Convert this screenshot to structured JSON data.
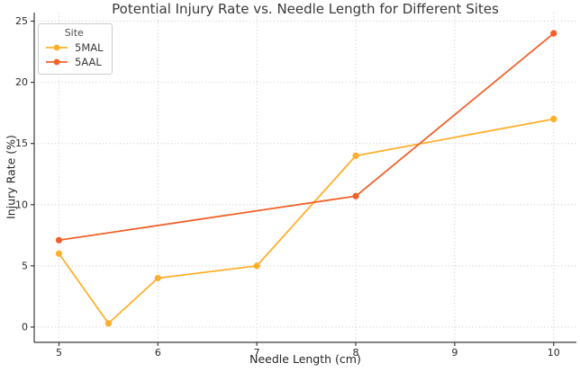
{
  "chart_data": {
    "type": "line",
    "title": "Potential Injury Rate vs. Needle Length for Different Sites",
    "xlabel": "Needle Length (cm)",
    "ylabel": "Injury Rate (%)",
    "xlim": [
      4.75,
      10.23
    ],
    "ylim": [
      -1.25,
      25.7
    ],
    "xticks": [
      5,
      6,
      7,
      8,
      9,
      10
    ],
    "yticks": [
      0,
      5,
      10,
      15,
      20,
      25
    ],
    "grid": {
      "visible": true,
      "style": "dotted",
      "color": "#cdcdcd"
    },
    "background": "#ffffff",
    "spines": [
      "left",
      "bottom"
    ],
    "legend": {
      "title": "Site",
      "position": "upper left"
    },
    "series": [
      {
        "name": "5MAL",
        "color": "#FFAF2B",
        "marker": "circle",
        "x": [
          5,
          5.5,
          6,
          7,
          8,
          10
        ],
        "y": [
          6,
          0.3,
          4,
          5,
          14,
          17
        ]
      },
      {
        "name": "5AAL",
        "color": "#F0612A",
        "marker": "circle",
        "x": [
          5,
          8,
          10
        ],
        "y": [
          7.1,
          10.7,
          24
        ]
      }
    ]
  }
}
